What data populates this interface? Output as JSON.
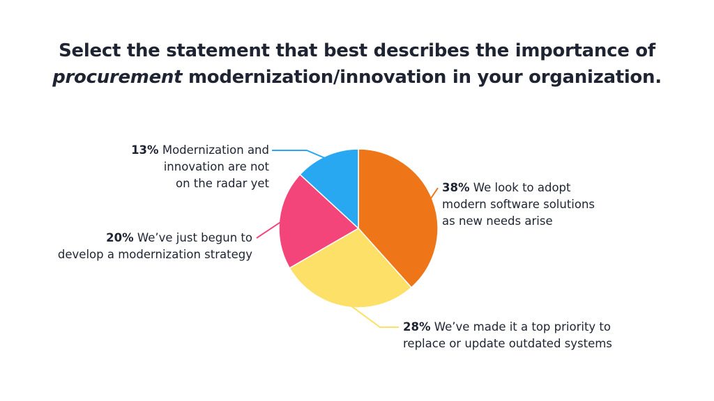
{
  "title": {
    "line1": "Select the statement that best describes the importance of",
    "line2_italic": "procurement",
    "line2_rest": " modernization/innovation in your organization."
  },
  "chart_data": {
    "type": "pie",
    "title": "Select the statement that best describes the importance of procurement modernization/innovation in your organization.",
    "slices": [
      {
        "value": 38,
        "percent_label": "38%",
        "text_lines": [
          "We look to adopt",
          "modern software solutions",
          "as new needs arise"
        ],
        "color": "#ee7518"
      },
      {
        "value": 28,
        "percent_label": "28%",
        "text_lines": [
          "We’ve made it a top priority to",
          "replace or update outdated systems"
        ],
        "color": "#fde068"
      },
      {
        "value": 20,
        "percent_label": "20%",
        "text_lines": [
          "We’ve just begun to",
          "develop a modernization strategy"
        ],
        "color": "#f4457a"
      },
      {
        "value": 13,
        "percent_label": "13%",
        "text_lines": [
          "Modernization and",
          "innovation are not",
          "on the radar yet"
        ],
        "color": "#28a8f0"
      }
    ],
    "start_angle_deg": 0,
    "direction": "clockwise"
  }
}
